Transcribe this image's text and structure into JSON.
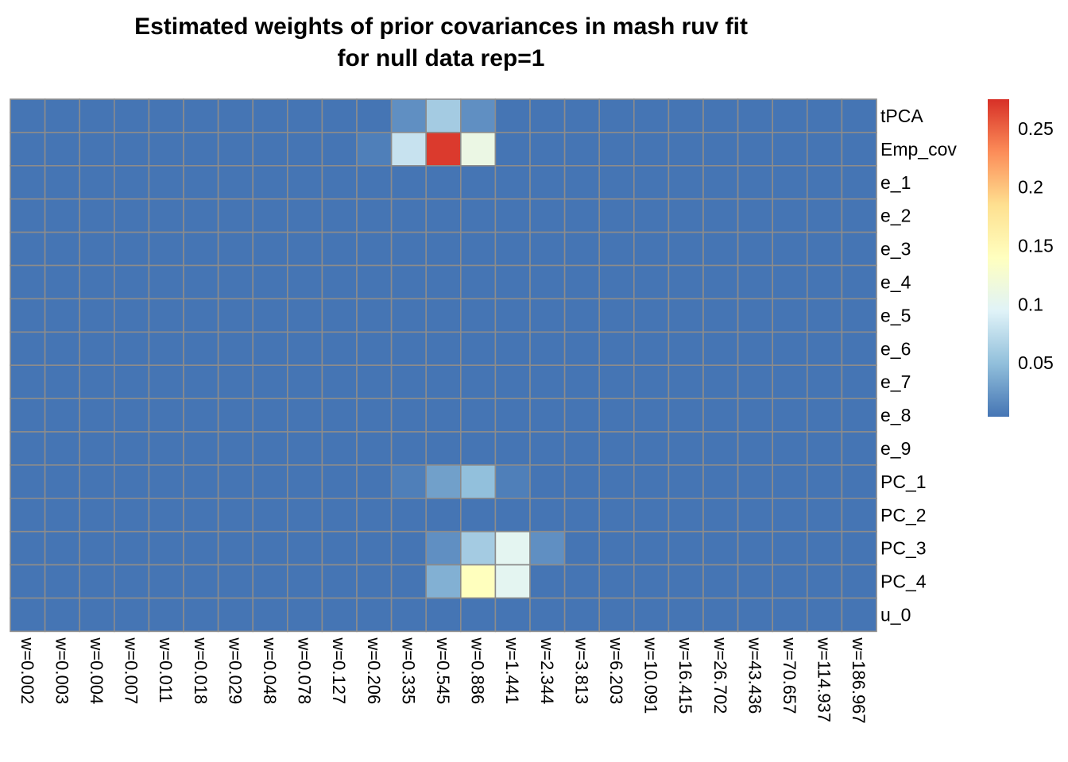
{
  "chart_data": {
    "type": "heatmap",
    "title_lines": [
      "Estimated weights of prior covariances in mash ruv fit",
      "for null data rep=1"
    ],
    "xlabel": "",
    "ylabel": "",
    "columns": [
      "w=0.002",
      "w=0.003",
      "w=0.004",
      "w=0.007",
      "w=0.011",
      "w=0.018",
      "w=0.029",
      "w=0.048",
      "w=0.078",
      "w=0.127",
      "w=0.206",
      "w=0.335",
      "w=0.545",
      "w=0.886",
      "w=1.441",
      "w=2.344",
      "w=3.813",
      "w=6.203",
      "w=10.091",
      "w=16.415",
      "w=26.702",
      "w=43.436",
      "w=70.657",
      "w=114.937",
      "w=186.967"
    ],
    "rows": [
      "tPCA",
      "Emp_cov",
      "e_1",
      "e_2",
      "e_3",
      "e_4",
      "e_5",
      "e_6",
      "e_7",
      "e_8",
      "e_9",
      "PC_1",
      "PC_2",
      "PC_3",
      "PC_4",
      "u_0"
    ],
    "values": [
      [
        0,
        0,
        0,
        0,
        0,
        0,
        0,
        0,
        0,
        0,
        0,
        0.02,
        0.06,
        0.02,
        0,
        0,
        0,
        0,
        0,
        0,
        0,
        0,
        0,
        0,
        0
      ],
      [
        0,
        0,
        0,
        0,
        0,
        0,
        0,
        0,
        0,
        0,
        0.01,
        0.08,
        0.27,
        0.11,
        0,
        0,
        0,
        0,
        0,
        0,
        0,
        0,
        0,
        0,
        0
      ],
      [
        0,
        0,
        0,
        0,
        0,
        0,
        0,
        0,
        0,
        0,
        0,
        0,
        0,
        0,
        0,
        0,
        0,
        0,
        0,
        0,
        0,
        0,
        0,
        0,
        0
      ],
      [
        0,
        0,
        0,
        0,
        0,
        0,
        0,
        0,
        0,
        0,
        0,
        0,
        0,
        0,
        0,
        0,
        0,
        0,
        0,
        0,
        0,
        0,
        0,
        0,
        0
      ],
      [
        0,
        0,
        0,
        0,
        0,
        0,
        0,
        0,
        0,
        0,
        0,
        0,
        0,
        0,
        0,
        0,
        0,
        0,
        0,
        0,
        0,
        0,
        0,
        0,
        0
      ],
      [
        0,
        0,
        0,
        0,
        0,
        0,
        0,
        0,
        0,
        0,
        0,
        0,
        0,
        0,
        0,
        0,
        0,
        0,
        0,
        0,
        0,
        0,
        0,
        0,
        0
      ],
      [
        0,
        0,
        0,
        0,
        0,
        0,
        0,
        0,
        0,
        0,
        0,
        0,
        0,
        0,
        0,
        0,
        0,
        0,
        0,
        0,
        0,
        0,
        0,
        0,
        0
      ],
      [
        0,
        0,
        0,
        0,
        0,
        0,
        0,
        0,
        0,
        0,
        0,
        0,
        0,
        0,
        0,
        0,
        0,
        0,
        0,
        0,
        0,
        0,
        0,
        0,
        0
      ],
      [
        0,
        0,
        0,
        0,
        0,
        0,
        0,
        0,
        0,
        0,
        0,
        0,
        0,
        0,
        0,
        0,
        0,
        0,
        0,
        0,
        0,
        0,
        0,
        0,
        0
      ],
      [
        0,
        0,
        0,
        0,
        0,
        0,
        0,
        0,
        0,
        0,
        0,
        0,
        0,
        0,
        0,
        0,
        0,
        0,
        0,
        0,
        0,
        0,
        0,
        0,
        0
      ],
      [
        0,
        0,
        0,
        0,
        0,
        0,
        0,
        0,
        0,
        0,
        0,
        0,
        0,
        0,
        0,
        0,
        0,
        0,
        0,
        0,
        0,
        0,
        0,
        0,
        0
      ],
      [
        0,
        0,
        0,
        0,
        0,
        0,
        0,
        0,
        0,
        0,
        0,
        0.01,
        0.03,
        0.05,
        0.01,
        0,
        0,
        0,
        0,
        0,
        0,
        0,
        0,
        0,
        0
      ],
      [
        0,
        0,
        0,
        0,
        0,
        0,
        0,
        0,
        0,
        0,
        0,
        0,
        0,
        0,
        0,
        0,
        0,
        0,
        0,
        0,
        0,
        0,
        0,
        0,
        0
      ],
      [
        0,
        0,
        0,
        0,
        0,
        0,
        0,
        0,
        0,
        0,
        0,
        0,
        0.02,
        0.06,
        0.1,
        0.02,
        0,
        0,
        0,
        0,
        0,
        0,
        0,
        0,
        0
      ],
      [
        0,
        0,
        0,
        0,
        0,
        0,
        0,
        0,
        0,
        0,
        0,
        0,
        0.04,
        0.14,
        0.1,
        0,
        0,
        0,
        0,
        0,
        0,
        0,
        0,
        0,
        0
      ],
      [
        0,
        0,
        0,
        0,
        0,
        0,
        0,
        0,
        0,
        0,
        0,
        0,
        0,
        0,
        0,
        0,
        0,
        0,
        0,
        0,
        0,
        0,
        0,
        0,
        0
      ]
    ],
    "color_range": [
      0.004,
      0.275
    ],
    "colorbar_ticks": [
      0.05,
      0.1,
      0.15,
      0.2,
      0.25
    ],
    "colorbar_tick_labels": [
      "0.05",
      "0.1",
      "0.15",
      "0.2",
      "0.25"
    ],
    "palette": [
      "#4575B4",
      "#91BFDB",
      "#E0F3F8",
      "#FFFFBF",
      "#FEE090",
      "#FC8D59",
      "#D73027"
    ],
    "cell_border_color": "#8C8C8C",
    "legend_position": "right"
  }
}
